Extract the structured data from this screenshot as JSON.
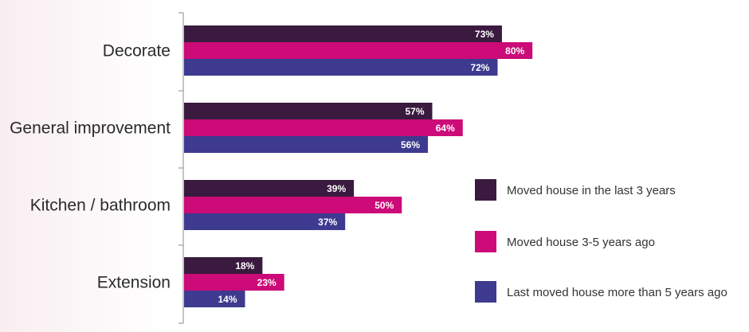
{
  "chart_data": {
    "type": "bar",
    "orientation": "horizontal",
    "categories": [
      "Decorate",
      "General improvement",
      "Kitchen / bathroom",
      "Extension"
    ],
    "series": [
      {
        "name": "Moved house in the last 3 years",
        "values": [
          73,
          57,
          39,
          18
        ],
        "color": "#3a1a3f"
      },
      {
        "name": "Moved house 3-5 years ago",
        "values": [
          80,
          64,
          50,
          23
        ],
        "color": "#cc0a78"
      },
      {
        "name": "Last moved house more than 5 years ago",
        "values": [
          72,
          56,
          37,
          14
        ],
        "color": "#3d3a8f"
      }
    ],
    "value_suffix": "%",
    "xlim": [
      0,
      100
    ],
    "grid": false,
    "legend_position": "right"
  }
}
